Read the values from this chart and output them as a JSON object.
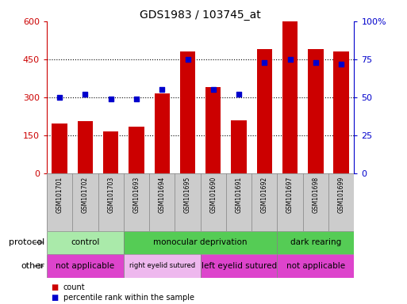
{
  "title": "GDS1983 / 103745_at",
  "samples": [
    "GSM101701",
    "GSM101702",
    "GSM101703",
    "GSM101693",
    "GSM101694",
    "GSM101695",
    "GSM101690",
    "GSM101691",
    "GSM101692",
    "GSM101697",
    "GSM101698",
    "GSM101699"
  ],
  "counts": [
    195,
    205,
    165,
    185,
    315,
    480,
    340,
    210,
    490,
    600,
    490,
    480
  ],
  "percentiles": [
    50,
    52,
    49,
    49,
    55,
    75,
    55,
    52,
    73,
    75,
    73,
    72
  ],
  "ylim_left": [
    0,
    600
  ],
  "ylim_right": [
    0,
    100
  ],
  "yticks_left": [
    0,
    150,
    300,
    450,
    600
  ],
  "yticks_right": [
    0,
    25,
    50,
    75,
    100
  ],
  "bar_color": "#CC0000",
  "dot_color": "#0000CC",
  "protocol_groups": [
    {
      "label": "control",
      "start": 0,
      "end": 3,
      "color": "#AAEAAA"
    },
    {
      "label": "monocular deprivation",
      "start": 3,
      "end": 9,
      "color": "#55CC55"
    },
    {
      "label": "dark rearing",
      "start": 9,
      "end": 12,
      "color": "#55CC55"
    }
  ],
  "other_groups": [
    {
      "label": "not applicable",
      "start": 0,
      "end": 3,
      "color": "#DD44CC"
    },
    {
      "label": "right eyelid sutured",
      "start": 3,
      "end": 6,
      "color": "#EEB8EE"
    },
    {
      "label": "left eyelid sutured",
      "start": 6,
      "end": 9,
      "color": "#DD44CC"
    },
    {
      "label": "not applicable",
      "start": 9,
      "end": 12,
      "color": "#DD44CC"
    }
  ],
  "legend_count_label": "count",
  "legend_pct_label": "percentile rank within the sample",
  "protocol_label": "protocol",
  "other_label": "other",
  "bar_color_hex": "#CC0000",
  "dot_color_hex": "#0000CC",
  "xtick_bg": "#CCCCCC",
  "grid_yticks": [
    150,
    300,
    450
  ]
}
